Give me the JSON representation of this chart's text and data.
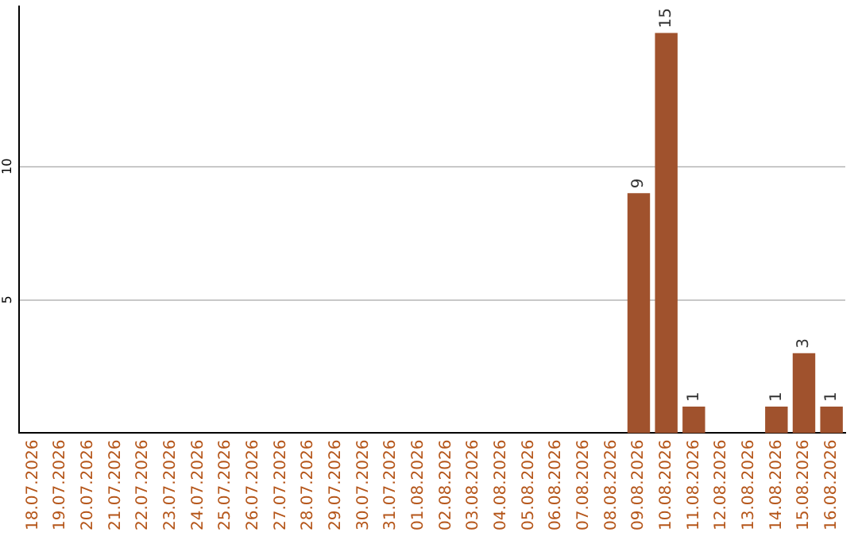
{
  "chart_data": {
    "type": "bar",
    "categories": [
      "18.07.2026",
      "19.07.2026",
      "20.07.2026",
      "21.07.2026",
      "22.07.2026",
      "23.07.2026",
      "24.07.2026",
      "25.07.2026",
      "26.07.2026",
      "27.07.2026",
      "28.07.2026",
      "29.07.2026",
      "30.07.2026",
      "31.07.2026",
      "01.08.2026",
      "02.08.2026",
      "03.08.2026",
      "04.08.2026",
      "05.08.2026",
      "06.08.2026",
      "07.08.2026",
      "08.08.2026",
      "09.08.2026",
      "10.08.2026",
      "11.08.2026",
      "12.08.2026",
      "13.08.2026",
      "14.08.2026",
      "15.08.2026",
      "16.08.2026"
    ],
    "values": [
      0,
      0,
      0,
      0,
      0,
      0,
      0,
      0,
      0,
      0,
      0,
      0,
      0,
      0,
      0,
      0,
      0,
      0,
      0,
      0,
      0,
      0,
      9,
      15,
      1,
      0,
      0,
      1,
      3,
      1
    ],
    "value_labels": [
      null,
      null,
      null,
      null,
      null,
      null,
      null,
      null,
      null,
      null,
      null,
      null,
      null,
      null,
      null,
      null,
      null,
      null,
      null,
      null,
      null,
      null,
      "9",
      "15",
      "1",
      null,
      null,
      "1",
      "3",
      "1"
    ],
    "color": "#a0522d",
    "ylim": [
      0,
      16
    ],
    "yticks": [
      5,
      10
    ],
    "grid": "y",
    "legend": false
  }
}
